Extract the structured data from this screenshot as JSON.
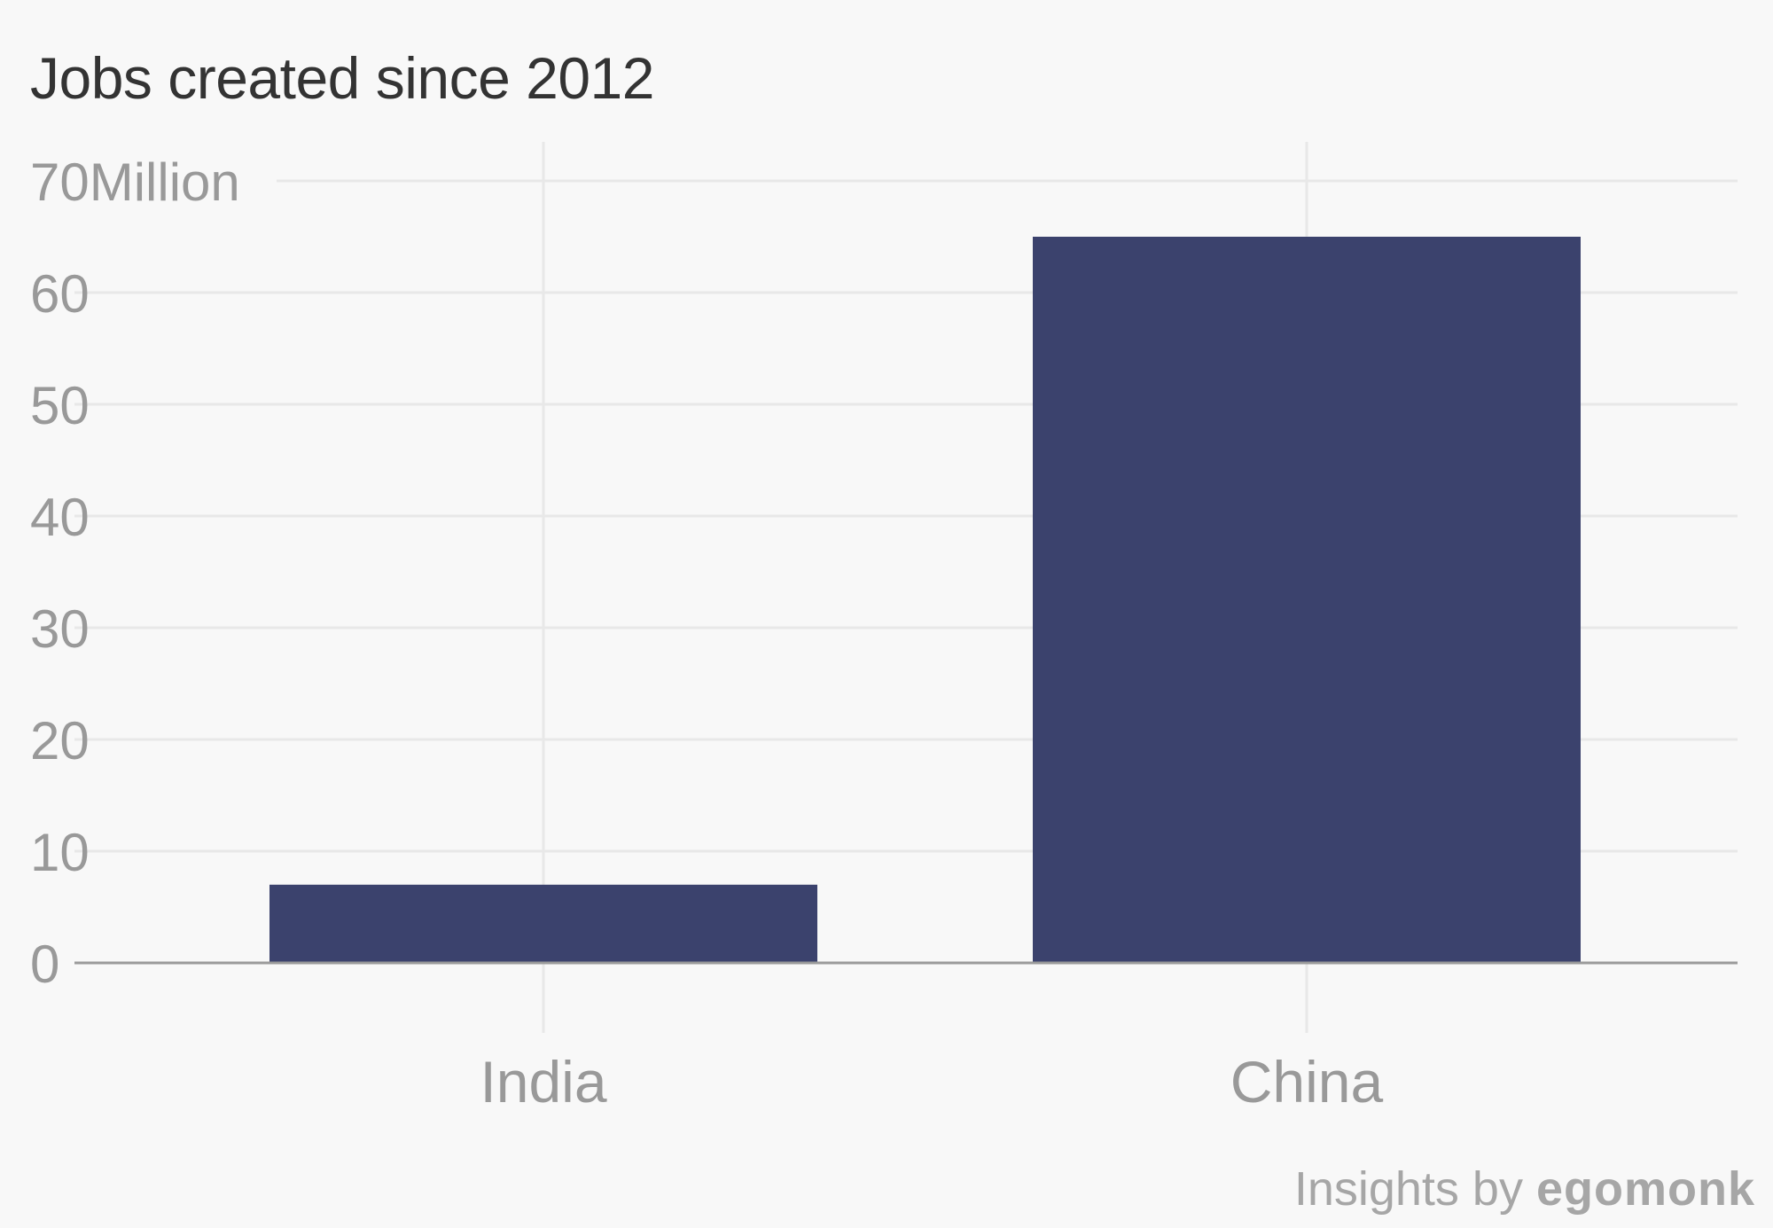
{
  "chart_data": {
    "type": "bar",
    "title": "Jobs created since 2012",
    "categories": [
      "India",
      "China"
    ],
    "values": [
      7,
      65
    ],
    "ylim": [
      0,
      70
    ],
    "yticks": [
      0,
      10,
      20,
      30,
      40,
      50,
      60,
      70
    ],
    "ytick_labels": [
      "0",
      "10",
      "20",
      "30",
      "40",
      "50",
      "60",
      "70Million"
    ],
    "xlabel": "",
    "ylabel": "",
    "grid": true,
    "legend": "none",
    "bar_color": "#3b426d"
  },
  "footer": {
    "prefix": "Insights by",
    "brand": "egomonk"
  }
}
